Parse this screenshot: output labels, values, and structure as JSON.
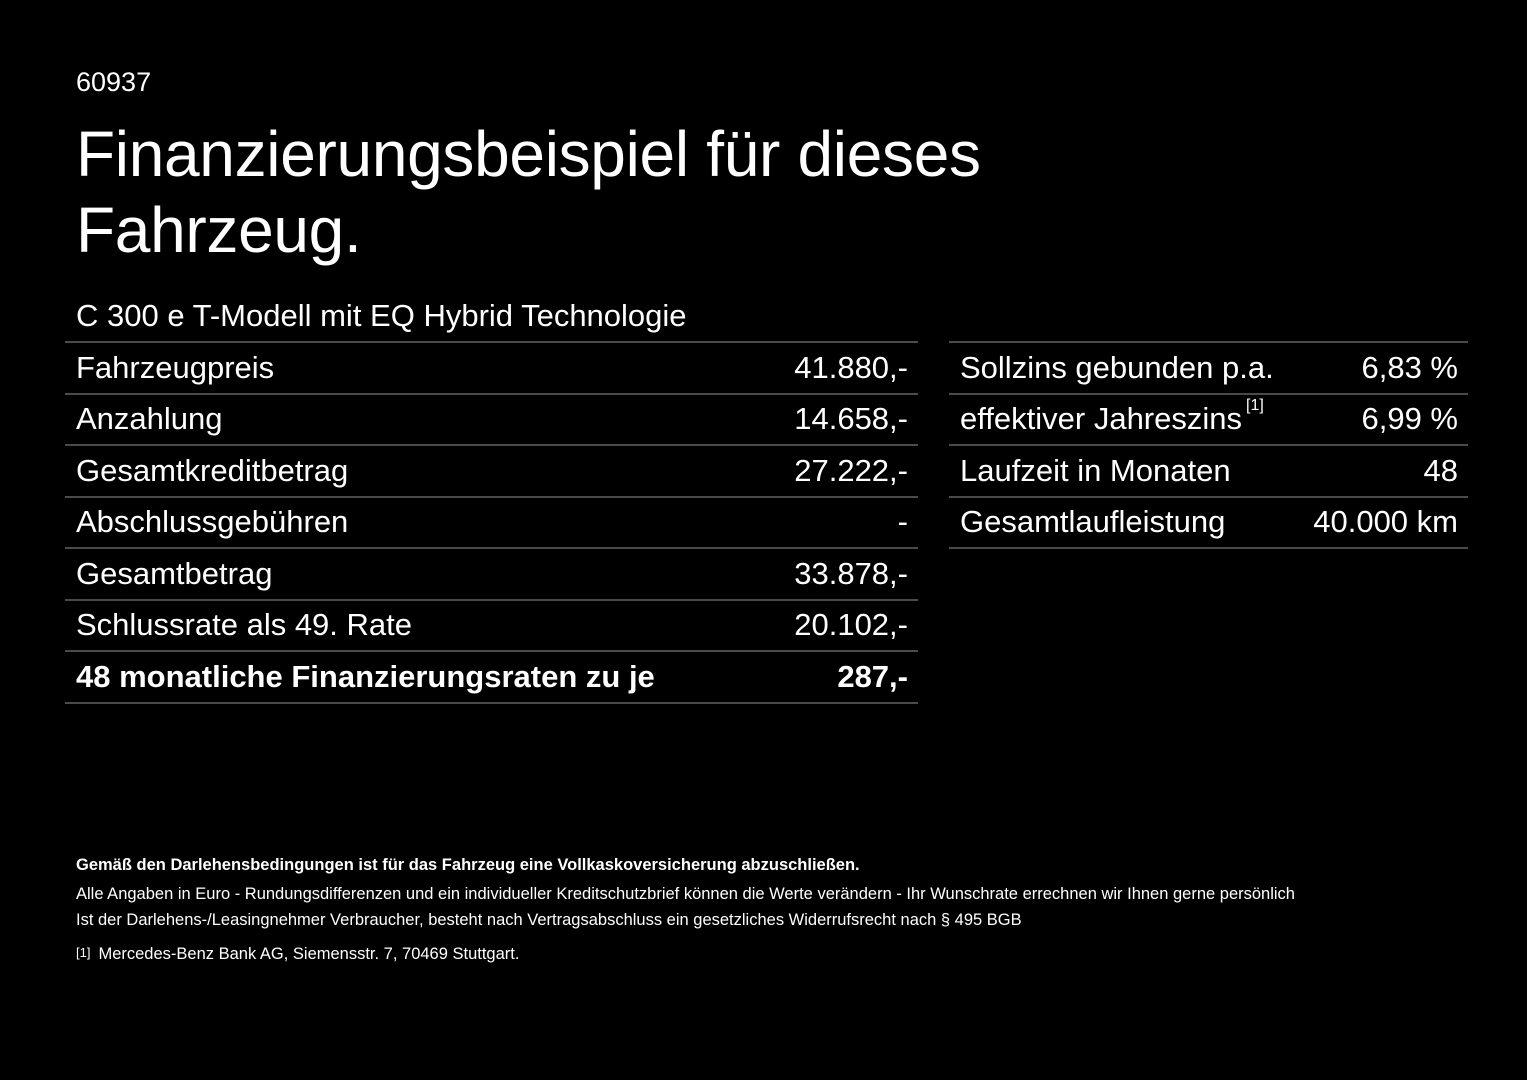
{
  "code": "60937",
  "title": "Finanzierungsbeispiel für dieses Fahrzeug.",
  "model": "C 300 e T-Modell mit EQ Hybrid Technologie",
  "left_table": [
    {
      "label": "Fahrzeugpreis",
      "value": "41.880,-"
    },
    {
      "label": "Anzahlung",
      "value": "14.658,-"
    },
    {
      "label": "Gesamtkreditbetrag",
      "value": "27.222,-"
    },
    {
      "label": "Abschlussgebühren",
      "value": "-"
    },
    {
      "label": "Gesamtbetrag",
      "value": "33.878,-"
    },
    {
      "label": "Schlussrate als 49. Rate",
      "value": "20.102,-"
    },
    {
      "label": "48 monatliche Finanzierungsraten zu je",
      "value": "287,-"
    }
  ],
  "right_table": [
    {
      "label": "Sollzins gebunden p.a.",
      "value": "6,83 %"
    },
    {
      "label": "effektiver Jahreszins",
      "footnote": "[1]",
      "value": "6,99 %"
    },
    {
      "label": "Laufzeit in Monaten",
      "value": "48"
    },
    {
      "label": "Gesamtlaufleistung",
      "value": "40.000 km"
    }
  ],
  "notes": {
    "bold": "Gemäß den Darlehensbedingungen ist für das Fahrzeug eine Vollkaskoversicherung abzuschließen.",
    "line1": "Alle Angaben in Euro - Rundungsdifferenzen und ein individueller Kreditschutzbrief können die Werte verändern - Ihr Wunschrate errechnen wir Ihnen gerne persönlich",
    "line2": "Ist der Darlehens-/Leasingnehmer Verbraucher, besteht nach Vertragsabschluss ein gesetzliches Widerrufsrecht nach § 495 BGB",
    "footnote_mark": "[1]",
    "footnote_text": "Mercedes-Benz Bank AG, Siemensstr. 7, 70469 Stuttgart."
  }
}
